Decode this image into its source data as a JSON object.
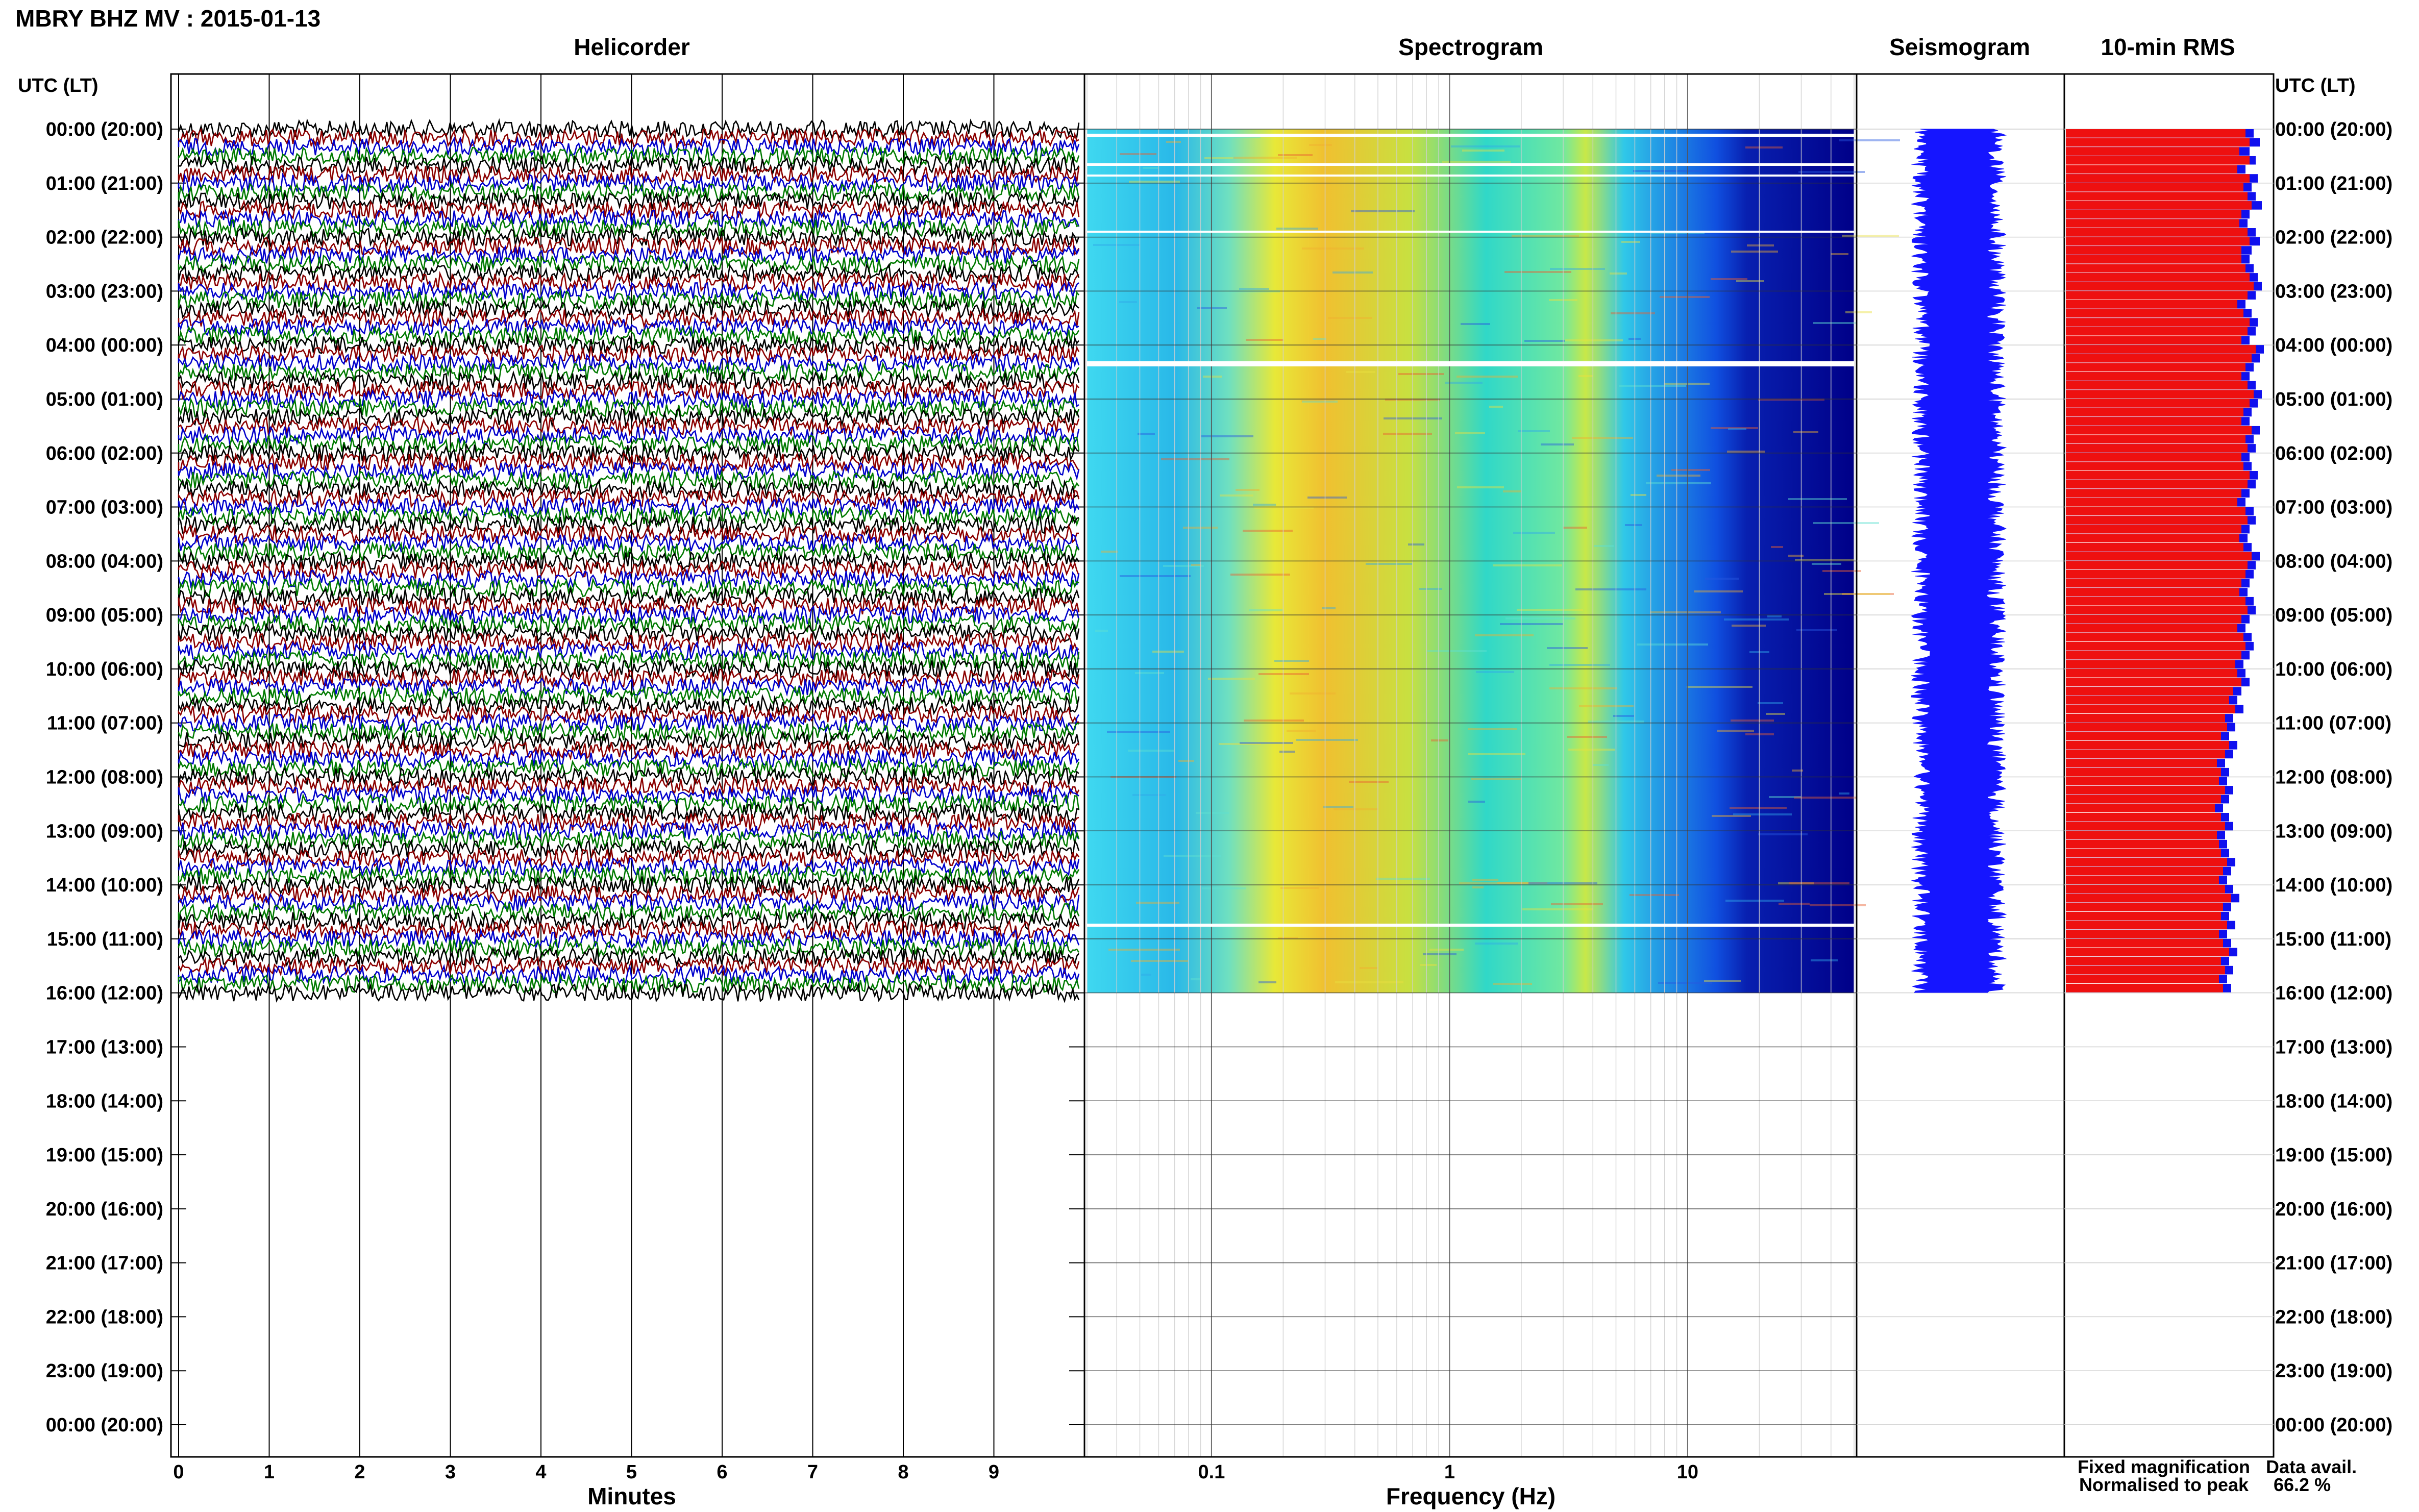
{
  "title": "MBRY BHZ MV : 2015-01-13",
  "panels": {
    "helicorder": "Helicorder",
    "spectrogram": "Spectrogram",
    "seismogram": "Seismogram",
    "rms": "10-min RMS"
  },
  "axis": {
    "left_header": "UTC (LT)",
    "right_header": "UTC (LT)",
    "minutes_label": "Minutes",
    "frequency_label": "Frequency (Hz)"
  },
  "legend": {
    "fixed": "Fixed magnification",
    "fixed_color": "#1010ee",
    "normalised": "Normalised to peak",
    "normalised_color": "#ee1010",
    "data_avail_label": "Data avail.",
    "data_avail_value": "66.2 %"
  },
  "chart_data": {
    "type": "heatmap",
    "time_labels": [
      "00:00 (20:00)",
      "01:00 (21:00)",
      "02:00 (22:00)",
      "03:00 (23:00)",
      "04:00 (00:00)",
      "05:00 (01:00)",
      "06:00 (02:00)",
      "07:00 (03:00)",
      "08:00 (04:00)",
      "09:00 (05:00)",
      "10:00 (06:00)",
      "11:00 (07:00)",
      "12:00 (08:00)",
      "13:00 (09:00)",
      "14:00 (10:00)",
      "15:00 (11:00)",
      "16:00 (12:00)",
      "17:00 (13:00)",
      "18:00 (14:00)",
      "19:00 (15:00)",
      "20:00 (16:00)",
      "21:00 (17:00)",
      "22:00 (18:00)",
      "23:00 (19:00)",
      "00:00 (20:00)"
    ],
    "minute_ticks": [
      "0",
      "1",
      "2",
      "3",
      "4",
      "5",
      "6",
      "7",
      "8",
      "9"
    ],
    "minute_range": [
      0,
      10
    ],
    "frequency_ticks": [
      "0.1",
      "1",
      "10"
    ],
    "frequency_range": [
      0.03,
      50
    ],
    "frequency_scale": "log",
    "hours_with_data": 16,
    "trace_colors": [
      "#000000",
      "#8b0000",
      "#0000cc",
      "#007a00"
    ],
    "rms_fixed": [
      0.92,
      0.95,
      0.9,
      0.93,
      0.88,
      0.94,
      0.91,
      0.93,
      0.96,
      0.9,
      0.89,
      0.93,
      0.95,
      0.91,
      0.9,
      0.92,
      0.94,
      0.96,
      0.93,
      0.88,
      0.91,
      0.94,
      0.93,
      0.9,
      0.97,
      0.95,
      0.92,
      0.9,
      0.93,
      0.96,
      0.94,
      0.91,
      0.9,
      0.95,
      0.92,
      0.93,
      0.9,
      0.91,
      0.94,
      0.93,
      0.9,
      0.88,
      0.92,
      0.93,
      0.9,
      0.89,
      0.91,
      0.95,
      0.93,
      0.92,
      0.9,
      0.89,
      0.92,
      0.93,
      0.9,
      0.88,
      0.91,
      0.92,
      0.9,
      0.87,
      0.88,
      0.9,
      0.86,
      0.84,
      0.87,
      0.82,
      0.83,
      0.8,
      0.84,
      0.82,
      0.78,
      0.8,
      0.79,
      0.82,
      0.8,
      0.77,
      0.8,
      0.82,
      0.78,
      0.79,
      0.8,
      0.83,
      0.81,
      0.79,
      0.82,
      0.85,
      0.81,
      0.8,
      0.83,
      0.79,
      0.81,
      0.84,
      0.8,
      0.82,
      0.79,
      0.81
    ],
    "rms_normalised": [
      0.88,
      0.9,
      0.85,
      0.9,
      0.84,
      0.9,
      0.87,
      0.89,
      0.91,
      0.86,
      0.85,
      0.89,
      0.9,
      0.86,
      0.86,
      0.88,
      0.9,
      0.92,
      0.89,
      0.84,
      0.87,
      0.9,
      0.89,
      0.86,
      0.93,
      0.91,
      0.88,
      0.86,
      0.89,
      0.92,
      0.9,
      0.87,
      0.86,
      0.91,
      0.88,
      0.89,
      0.86,
      0.87,
      0.9,
      0.89,
      0.86,
      0.84,
      0.88,
      0.89,
      0.86,
      0.85,
      0.87,
      0.91,
      0.89,
      0.88,
      0.86,
      0.85,
      0.88,
      0.89,
      0.86,
      0.84,
      0.87,
      0.88,
      0.86,
      0.83,
      0.84,
      0.86,
      0.82,
      0.8,
      0.83,
      0.78,
      0.79,
      0.76,
      0.8,
      0.78,
      0.74,
      0.76,
      0.75,
      0.78,
      0.76,
      0.73,
      0.76,
      0.78,
      0.74,
      0.75,
      0.76,
      0.79,
      0.77,
      0.75,
      0.78,
      0.81,
      0.77,
      0.76,
      0.79,
      0.75,
      0.77,
      0.8,
      0.76,
      0.78,
      0.75,
      0.77
    ]
  }
}
